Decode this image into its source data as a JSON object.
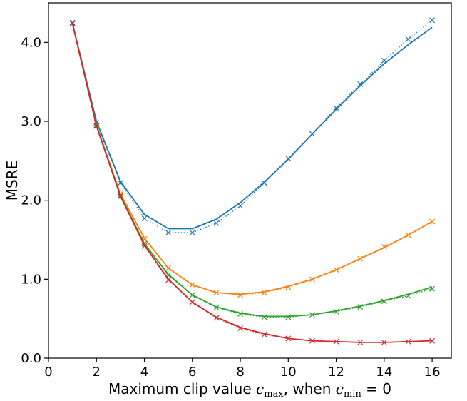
{
  "chart_data": {
    "type": "line",
    "xlabel": {
      "prefix": "Maximum clip value ",
      "var1": "c",
      "sub1": "max",
      "middle": ", when ",
      "var2": "c",
      "sub2": "min",
      "suffix": " = 0"
    },
    "ylabel": "MSRE",
    "xlim": [
      0,
      16.8
    ],
    "ylim": [
      0.0,
      4.5
    ],
    "xticks": [
      0,
      2,
      4,
      6,
      8,
      10,
      12,
      14,
      16
    ],
    "yticks": [
      0.0,
      1.0,
      2.0,
      3.0,
      4.0
    ],
    "xtick_labels": [
      "0",
      "2",
      "4",
      "6",
      "8",
      "10",
      "12",
      "14",
      "16"
    ],
    "ytick_labels": [
      "0.0",
      "1.0",
      "2.0",
      "3.0",
      "4.0"
    ],
    "grid": false,
    "x": [
      1,
      2,
      3,
      4,
      5,
      6,
      7,
      8,
      9,
      10,
      11,
      12,
      13,
      14,
      15,
      16
    ],
    "series": [
      {
        "color": "#1f77b4",
        "solid": [
          4.24,
          3.0,
          2.24,
          1.82,
          1.64,
          1.64,
          1.76,
          1.97,
          2.23,
          2.52,
          2.84,
          3.15,
          3.45,
          3.73,
          3.97,
          4.19
        ],
        "markers": [
          4.25,
          2.98,
          2.22,
          1.77,
          1.59,
          1.59,
          1.71,
          1.93,
          2.22,
          2.53,
          2.84,
          3.17,
          3.47,
          3.77,
          4.04,
          4.28
        ]
      },
      {
        "color": "#ff7f0e",
        "solid": [
          4.24,
          2.95,
          2.08,
          1.52,
          1.14,
          0.93,
          0.83,
          0.81,
          0.84,
          0.91,
          1.0,
          1.12,
          1.26,
          1.4,
          1.56,
          1.73
        ],
        "markers": [
          4.24,
          2.95,
          2.08,
          1.51,
          1.14,
          0.93,
          0.83,
          0.8,
          0.83,
          0.9,
          1.0,
          1.12,
          1.26,
          1.41,
          1.56,
          1.73
        ]
      },
      {
        "color": "#2ca02c",
        "solid": [
          4.24,
          2.95,
          2.06,
          1.45,
          1.06,
          0.8,
          0.65,
          0.57,
          0.53,
          0.53,
          0.55,
          0.6,
          0.66,
          0.73,
          0.81,
          0.9
        ],
        "markers": [
          4.24,
          2.95,
          2.06,
          1.45,
          1.05,
          0.8,
          0.64,
          0.56,
          0.52,
          0.52,
          0.55,
          0.59,
          0.65,
          0.72,
          0.79,
          0.88
        ]
      },
      {
        "color": "#d62728",
        "solid": [
          4.24,
          2.94,
          2.05,
          1.43,
          1.0,
          0.71,
          0.52,
          0.39,
          0.31,
          0.25,
          0.22,
          0.21,
          0.2,
          0.2,
          0.21,
          0.22
        ],
        "markers": [
          4.24,
          2.94,
          2.05,
          1.42,
          0.99,
          0.71,
          0.51,
          0.38,
          0.3,
          0.25,
          0.22,
          0.21,
          0.2,
          0.2,
          0.21,
          0.22
        ]
      }
    ]
  }
}
